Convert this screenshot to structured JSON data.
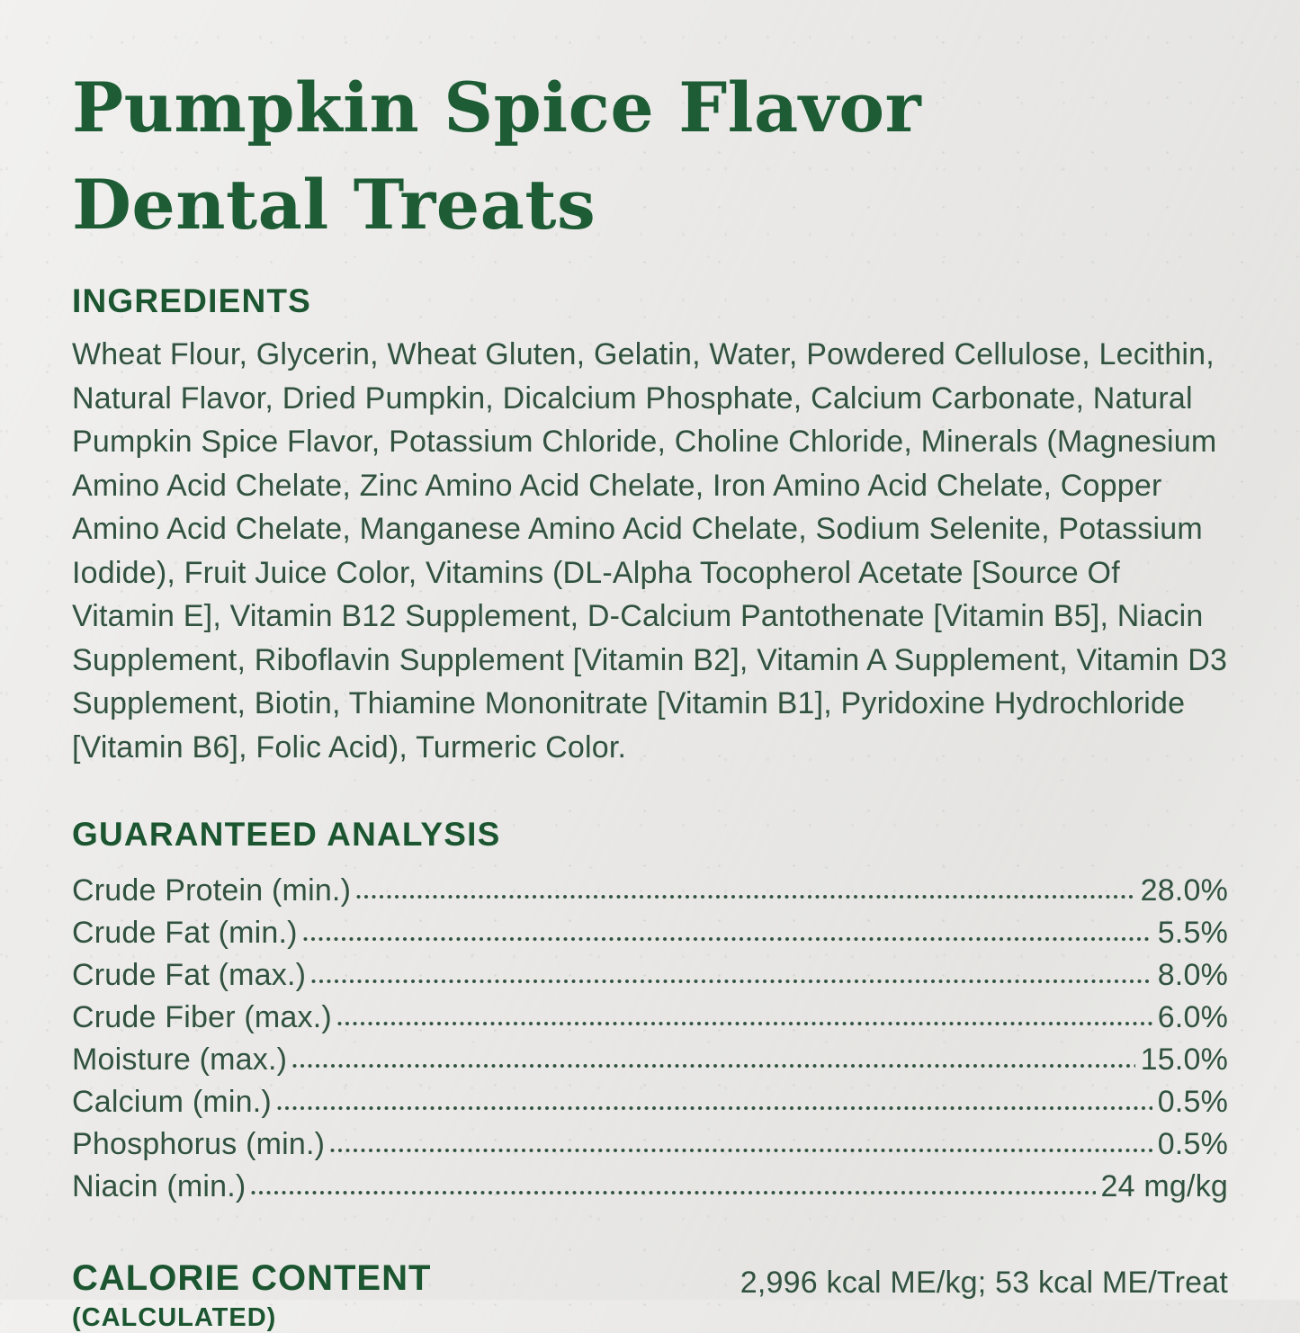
{
  "title": {
    "line1": "Pumpkin Spice Flavor",
    "line2": "Dental Treats"
  },
  "ingredients": {
    "heading": "INGREDIENTS",
    "text": "Wheat Flour, Glycerin, Wheat Gluten, Gelatin, Water, Powdered Cellulose, Lecithin, Natural Flavor, Dried Pumpkin, Dicalcium Phosphate, Calcium Carbonate, Natural Pumpkin Spice Flavor, Potassium Chloride, Choline Chloride, Minerals (Magnesium Amino Acid Chelate, Zinc Amino Acid Chelate, Iron Amino Acid Chelate, Copper Amino Acid Chelate, Manganese Amino Acid Chelate, Sodium Selenite, Potassium Iodide), Fruit Juice Color, Vitamins (DL-Alpha Tocopherol Acetate [Source Of Vitamin E], Vitamin B12 Supplement, D-Calcium Pantothenate [Vitamin B5], Niacin Supplement, Riboflavin Supplement [Vitamin B2], Vitamin A Supplement, Vitamin D3 Supplement, Biotin, Thiamine Mononitrate [Vitamin B1], Pyridoxine Hydrochloride [Vitamin B6], Folic Acid), Turmeric Color."
  },
  "guaranteed_analysis": {
    "heading": "GUARANTEED ANALYSIS",
    "rows": [
      {
        "label": "Crude Protein (min.)",
        "value": "28.0%"
      },
      {
        "label": "Crude Fat (min.)",
        "value": "5.5%"
      },
      {
        "label": "Crude Fat (max.)",
        "value": "8.0%"
      },
      {
        "label": "Crude Fiber (max.)",
        "value": "6.0%"
      },
      {
        "label": "Moisture (max.)",
        "value": "15.0%"
      },
      {
        "label": "Calcium (min.)",
        "value": "0.5%"
      },
      {
        "label": "Phosphorus (min.)",
        "value": "0.5%"
      },
      {
        "label": "Niacin (min.)",
        "value": "24 mg/kg"
      }
    ]
  },
  "calorie_content": {
    "heading": "CALORIE CONTENT",
    "subheading": "(CALCULATED)",
    "value": "2,996 kcal ME/kg; 53 kcal ME/Treat"
  },
  "colors": {
    "background": "#eae9e7",
    "title_green": "#1d5c34",
    "heading_green": "#1c5631",
    "body_ink_green": "#31523f"
  }
}
